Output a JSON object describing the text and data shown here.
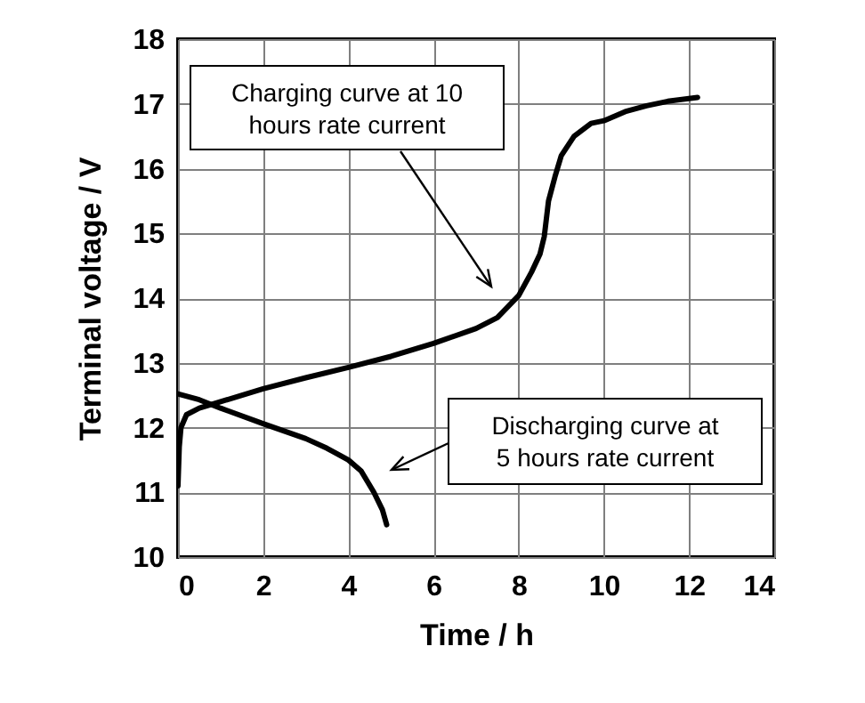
{
  "chart_data": {
    "type": "line",
    "xlabel": "Time / h",
    "ylabel": "Terminal voltage / V",
    "xlim": [
      0,
      14
    ],
    "xticks": [
      0,
      2,
      4,
      6,
      8,
      10,
      12,
      14
    ],
    "ylim": [
      10,
      18
    ],
    "yticks": [
      10,
      11,
      12,
      13,
      14,
      15,
      16,
      17,
      18
    ],
    "grid": true,
    "line_style": "solid",
    "legend": false,
    "series": [
      {
        "color": "#000000",
        "x": [
          0,
          0.03,
          0.07,
          0.2,
          0.5,
          1,
          2,
          3,
          4,
          5,
          6,
          7,
          7.5,
          8,
          8.3,
          8.5,
          8.6,
          8.7,
          8.85,
          9,
          9.3,
          9.7,
          10,
          10.5,
          11,
          11.5,
          12.2
        ],
        "values": [
          11.1,
          11.7,
          12.0,
          12.2,
          12.3,
          12.4,
          12.6,
          12.77,
          12.93,
          13.1,
          13.3,
          13.53,
          13.7,
          14.04,
          14.4,
          14.68,
          14.95,
          15.5,
          15.87,
          16.2,
          16.5,
          16.7,
          16.74,
          16.88,
          16.97,
          17.04,
          17.1
        ]
      },
      {
        "color": "#000000",
        "x": [
          0,
          0.5,
          1,
          2,
          3,
          3.5,
          4,
          4.3,
          4.6,
          4.8,
          4.9
        ],
        "values": [
          12.52,
          12.43,
          12.3,
          12.06,
          11.83,
          11.68,
          11.5,
          11.33,
          11.0,
          10.73,
          10.5
        ]
      }
    ],
    "annotations": [
      "Charging curve at 10 hours rate current",
      "Discharging curve at 5 hours rate current"
    ]
  }
}
